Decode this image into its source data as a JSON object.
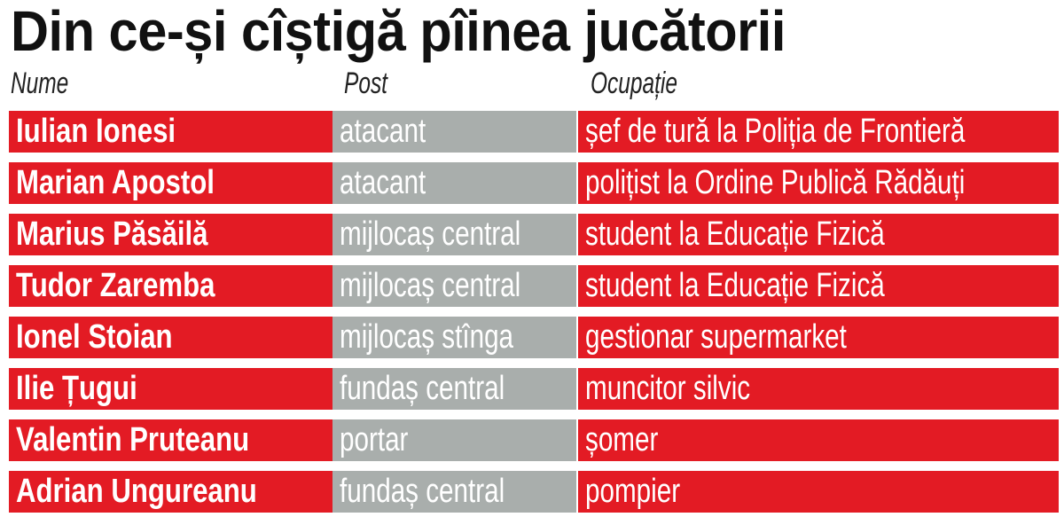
{
  "title": "Din ce-și cîștigă pîinea jucătorii",
  "headers": {
    "name": "Nume",
    "position": "Post",
    "occupation": "Ocupație"
  },
  "colors": {
    "red": "#e31b24",
    "gray": "#a9aeac"
  },
  "rows": [
    {
      "name": "Iulian Ionesi",
      "position": "atacant",
      "occupation": "șef de tură la Poliția de Frontieră"
    },
    {
      "name": "Marian Apostol",
      "position": "atacant",
      "occupation": "polițist la Ordine Publică Rădăuți"
    },
    {
      "name": "Marius Păsăilă",
      "position": "mijlocaș central",
      "occupation": "student la Educație Fizică"
    },
    {
      "name": "Tudor Zaremba",
      "position": "mijlocaș central",
      "occupation": "student la Educație Fizică"
    },
    {
      "name": "Ionel Stoian",
      "position": "mijlocaș stînga",
      "occupation": "gestionar supermarket"
    },
    {
      "name": "Ilie Țugui",
      "position": "fundaș central",
      "occupation": "muncitor silvic"
    },
    {
      "name": "Valentin Pruteanu",
      "position": "portar",
      "occupation": "șomer"
    },
    {
      "name": "Adrian Ungureanu",
      "position": "fundaș central",
      "occupation": "pompier"
    }
  ]
}
